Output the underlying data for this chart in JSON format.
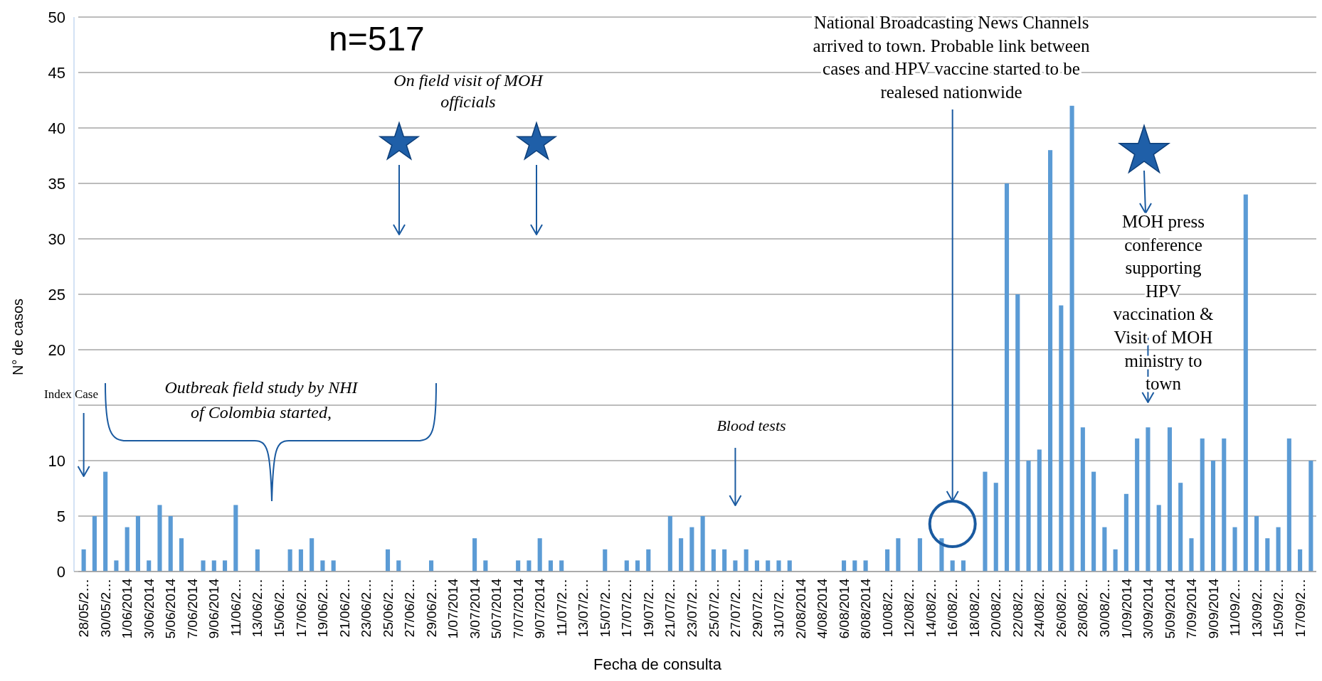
{
  "chart_data": {
    "type": "bar",
    "xlabel": "Fecha de consulta",
    "ylabel": "N° de casos",
    "color": "#5b9bd5",
    "ylim": [
      0,
      50
    ],
    "yticks": [
      0,
      5,
      10,
      {
        "value": 15,
        "label": null
      },
      20,
      25,
      30,
      35,
      40,
      45,
      50
    ],
    "grid": "y",
    "categories": [
      "28/05/2…",
      null,
      "30/05/2…",
      null,
      "1/06/2014",
      null,
      "3/06/2014",
      null,
      "5/06/2014",
      null,
      "7/06/2014",
      null,
      "9/06/2014",
      null,
      "11/06/2…",
      null,
      "13/06/2…",
      null,
      "15/06/2…",
      null,
      "17/06/2…",
      null,
      "19/06/2…",
      null,
      "21/06/2…",
      null,
      "23/06/2…",
      null,
      "25/06/2…",
      null,
      "27/06/2…",
      null,
      "29/06/2…",
      null,
      "1/07/2014",
      null,
      "3/07/2014",
      null,
      "5/07/2014",
      null,
      "7/07/2014",
      null,
      "9/07/2014",
      null,
      "11/07/2…",
      null,
      "13/07/2…",
      null,
      "15/07/2…",
      null,
      "17/07/2…",
      null,
      "19/07/2…",
      null,
      "21/07/2…",
      null,
      "23/07/2…",
      null,
      "25/07/2…",
      null,
      "27/07/2…",
      null,
      "29/07/2…",
      null,
      "31/07/2…",
      null,
      "2/08/2014",
      null,
      "4/08/2014",
      null,
      "6/08/2014",
      null,
      "8/08/2014",
      null,
      "10/08/2…",
      null,
      "12/08/2…",
      null,
      "14/08/2…",
      null,
      "16/08/2…",
      null,
      "18/08/2…",
      null,
      "20/08/2…",
      null,
      "22/08/2…",
      null,
      "24/08/2…",
      null,
      "26/08/2…",
      null,
      "28/08/2…",
      null,
      "30/08/2…",
      null,
      "1/09/2014",
      null,
      "3/09/2014",
      null,
      "5/09/2014",
      null,
      "7/09/2014",
      null,
      "9/09/2014",
      null,
      "11/09/2…",
      null,
      "13/09/2…",
      null,
      "15/09/2…",
      null,
      "17/09/2…",
      null
    ],
    "values": [
      2,
      5,
      9,
      1,
      4,
      5,
      1,
      6,
      5,
      3,
      0,
      1,
      1,
      1,
      6,
      0,
      2,
      0,
      0,
      2,
      2,
      3,
      1,
      1,
      0,
      0,
      0,
      0,
      2,
      1,
      0,
      0,
      1,
      0,
      0,
      0,
      3,
      1,
      0,
      0,
      1,
      1,
      3,
      1,
      1,
      0,
      0,
      0,
      2,
      0,
      1,
      1,
      2,
      0,
      5,
      3,
      4,
      5,
      2,
      2,
      1,
      2,
      1,
      1,
      1,
      1,
      0,
      0,
      0,
      0,
      1,
      1,
      1,
      0,
      2,
      3,
      0,
      3,
      0,
      3,
      1,
      1,
      0,
      9,
      8,
      35,
      25,
      10,
      11,
      38,
      24,
      42,
      13,
      9,
      4,
      2,
      7,
      12,
      13,
      6,
      13,
      8,
      3,
      12,
      10,
      12,
      4,
      34,
      5,
      3,
      4,
      12,
      2,
      10
    ],
    "annotations": [
      "n=517",
      "On field visit of MOH officials",
      "Index Case",
      "Outbreak field study by NHI of Colombia started,",
      "Blood tests",
      "National Broadcasting News Channels arrived to town. Probable link between cases and HPV vaccine started to be realesed nationwide",
      "MOH press conference supporting HPV vaccination & Visit of MOH ministry to town"
    ]
  }
}
